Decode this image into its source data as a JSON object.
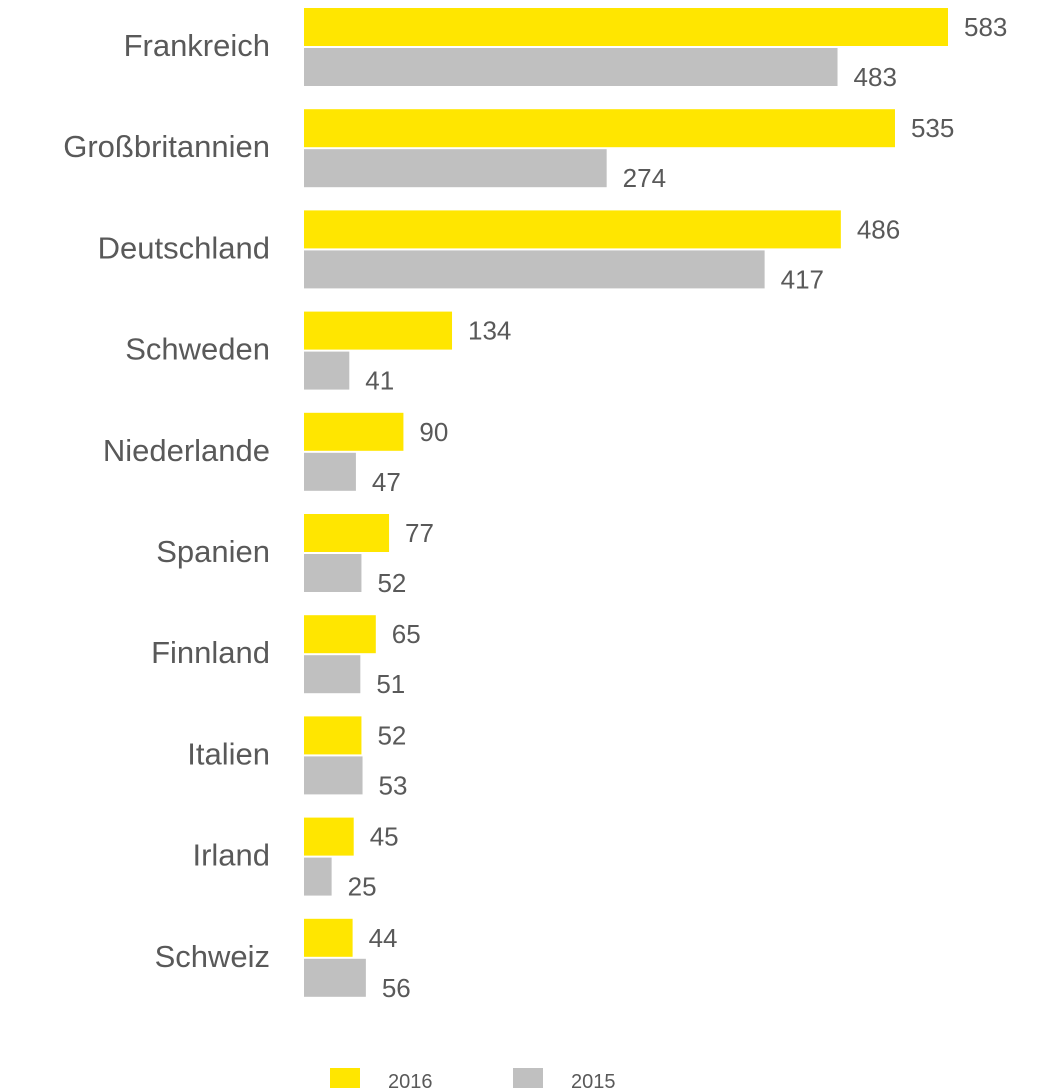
{
  "chart_data": {
    "type": "bar",
    "orientation": "horizontal",
    "categories": [
      "Frankreich",
      "Großbritannien",
      "Deutschland",
      "Schweden",
      "Niederlande",
      "Spanien",
      "Finnland",
      "Italien",
      "Irland",
      "Schweiz"
    ],
    "series": [
      {
        "name": "2016",
        "color": "#FFE600",
        "values": [
          583,
          535,
          486,
          134,
          90,
          77,
          65,
          52,
          45,
          44
        ]
      },
      {
        "name": "2015",
        "color": "#C0C0C0",
        "values": [
          483,
          274,
          417,
          41,
          47,
          52,
          51,
          53,
          25,
          56
        ]
      }
    ],
    "xlim": [
      0,
      583
    ],
    "grid": false,
    "legend_position": "bottom"
  }
}
